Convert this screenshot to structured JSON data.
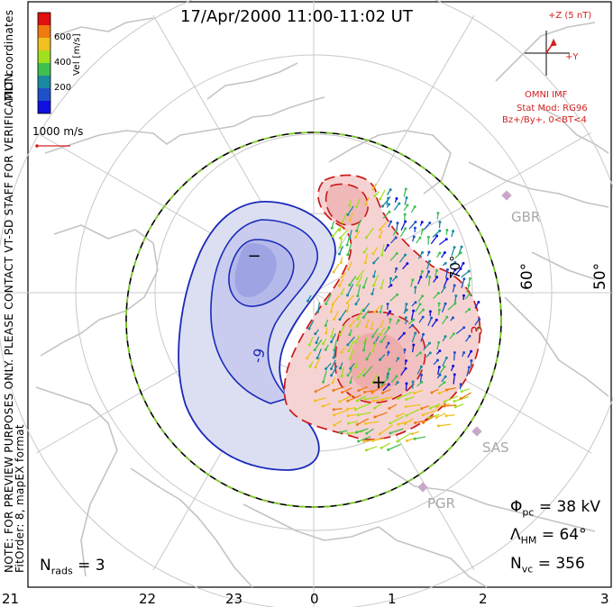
{
  "header": {
    "title": "17/Apr/2000 11:00-11:02 UT"
  },
  "colorbar": {
    "label": "Vel [m/s]",
    "ticks": [
      "600",
      "400",
      "200"
    ],
    "colors": [
      "#e01010",
      "#f07a10",
      "#f0c020",
      "#a0e020",
      "#40c050",
      "#1a8aa0",
      "#2050c8",
      "#1010e0"
    ]
  },
  "mlt_coords_label": "MLT coordinates",
  "scale_vector": {
    "label": "1000 m/s",
    "color": "#d42020"
  },
  "imf": {
    "z_label": "+Z (5 nT)",
    "y_label": "+Y",
    "source": "OMNI IMF",
    "model": "Stat Mod: RG96",
    "bin": "Bz+/By+, 0<BT<4",
    "color": "#d42020"
  },
  "note_lines": [
    "NOTE: FOR PREVIEW PURPOSES ONLY. PLEASE CONTACT VT-SD STAFF FOR VERIFICATION.",
    "FitOrder: 8, mapEX format"
  ],
  "contour_labels": {
    "negative": "-9",
    "positive": "3"
  },
  "potential_markers": {
    "min": "−",
    "max": "+"
  },
  "radars": [
    {
      "code": "GBR",
      "icon": "radar-site-icon"
    },
    {
      "code": "SAS",
      "icon": "radar-site-icon"
    },
    {
      "code": "PGR",
      "icon": "radar-site-icon"
    }
  ],
  "latitude_labels": [
    "70°",
    "60°",
    "50°"
  ],
  "stats": {
    "phi_pc": {
      "symbol": "Φ",
      "sub": "pc",
      "value": "= 38 kV"
    },
    "lambda_hm": {
      "symbol": "Λ",
      "sub": "HM",
      "value": "= 64°"
    },
    "n_vc": {
      "symbol": "N",
      "sub": "vc",
      "value": "= 356"
    },
    "n_rads": {
      "symbol": "N",
      "sub": "rads",
      "value": "= 3"
    }
  },
  "mlt_axis": [
    "21",
    "22",
    "23",
    "0",
    "1",
    "2",
    "3"
  ],
  "colors": {
    "negative_contour": "#1a2ab8",
    "negative_fill": "#dcdff2",
    "positive_contour": "#cc1818",
    "positive_fill": "#f6cccc",
    "heppner_maynard_boundary": "#7ed321",
    "grid": "#c8c8c8",
    "coastline": "#c0c0c0"
  }
}
